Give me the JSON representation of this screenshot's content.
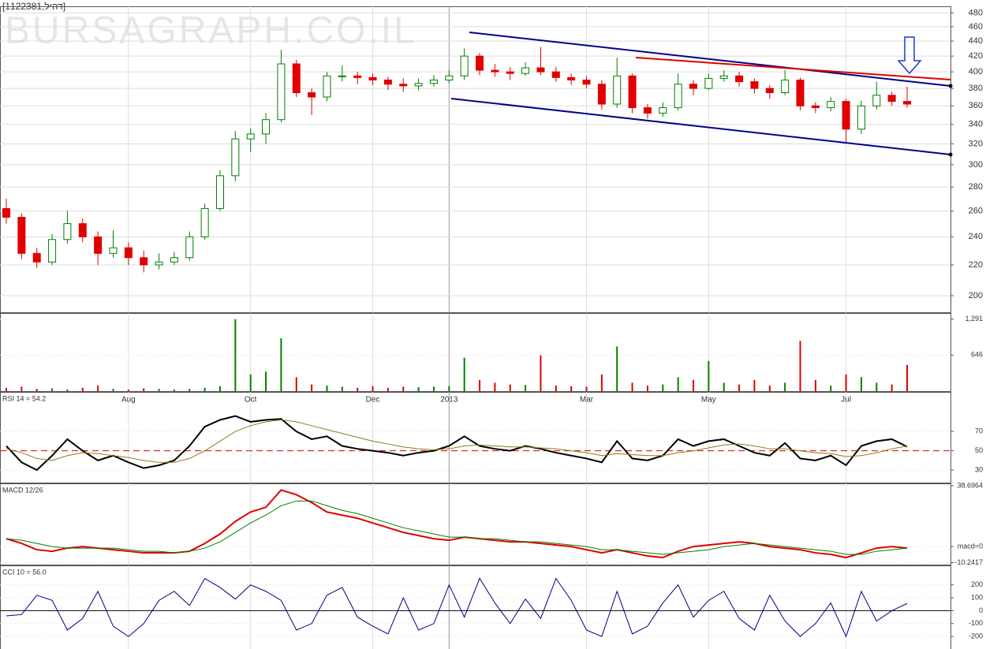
{
  "chart_data": [
    {
      "type": "candlestick",
      "title": "[1122381,דהיל]",
      "watermark": "BURSAGRAPH.CO.IL",
      "categories": [
        null,
        null,
        null,
        null,
        null,
        null,
        null,
        null,
        "Aug",
        null,
        null,
        null,
        null,
        null,
        null,
        null,
        "Oct",
        null,
        null,
        null,
        null,
        null,
        null,
        null,
        "Dec",
        null,
        null,
        null,
        null,
        "2013",
        null,
        null,
        null,
        null,
        null,
        null,
        null,
        null,
        "Mar",
        null,
        null,
        null,
        null,
        null,
        null,
        null,
        "May",
        null,
        null,
        null,
        null,
        null,
        null,
        null,
        null,
        "Jul",
        null,
        null,
        null,
        null
      ],
      "open": [
        262,
        255,
        228,
        222,
        238,
        250,
        240,
        228,
        232,
        225,
        220,
        222,
        225,
        240,
        262,
        290,
        325,
        330,
        345,
        410,
        375,
        370,
        395,
        395,
        393,
        390,
        385,
        383,
        386,
        390,
        395,
        420,
        402,
        400,
        398,
        405,
        400,
        393,
        390,
        385,
        362,
        395,
        358,
        352,
        358,
        385,
        380,
        392,
        395,
        388,
        380,
        375,
        390,
        360,
        358,
        365,
        335,
        360,
        372,
        365
      ],
      "high": [
        270,
        258,
        232,
        242,
        260,
        254,
        244,
        245,
        236,
        230,
        228,
        229,
        244,
        266,
        295,
        333,
        336,
        352,
        428,
        415,
        380,
        400,
        408,
        400,
        398,
        394,
        392,
        392,
        396,
        402,
        430,
        424,
        410,
        406,
        412,
        432,
        406,
        398,
        395,
        390,
        418,
        398,
        362,
        364,
        398,
        390,
        398,
        402,
        400,
        392,
        384,
        402,
        393,
        364,
        370,
        368,
        366,
        388,
        376,
        382
      ],
      "low": [
        250,
        224,
        218,
        220,
        235,
        236,
        220,
        225,
        220,
        215,
        217,
        220,
        223,
        238,
        260,
        285,
        312,
        320,
        342,
        370,
        350,
        365,
        388,
        385,
        384,
        378,
        376,
        378,
        382,
        386,
        390,
        396,
        394,
        390,
        395,
        396,
        388,
        384,
        380,
        356,
        358,
        352,
        346,
        348,
        355,
        372,
        378,
        388,
        382,
        374,
        368,
        372,
        355,
        352,
        354,
        322,
        330,
        356,
        360,
        358
      ],
      "close": [
        255,
        228,
        222,
        238,
        250,
        240,
        228,
        232,
        225,
        220,
        222,
        225,
        240,
        262,
        290,
        325,
        330,
        345,
        410,
        375,
        370,
        395,
        395,
        393,
        390,
        385,
        383,
        386,
        390,
        395,
        420,
        402,
        400,
        398,
        405,
        400,
        393,
        390,
        385,
        362,
        395,
        358,
        352,
        358,
        385,
        380,
        392,
        395,
        388,
        380,
        375,
        390,
        360,
        358,
        365,
        335,
        360,
        372,
        365,
        362
      ],
      "up_color": "#008000",
      "down_color": "#e00000",
      "ylim": [
        190,
        490
      ],
      "log_scale": true,
      "grid": true,
      "yticks": [
        200,
        220,
        240,
        260,
        280,
        300,
        320,
        340,
        360,
        380,
        400,
        420,
        440,
        460,
        480
      ]
    },
    {
      "type": "bar",
      "values": [
        60,
        80,
        40,
        50,
        30,
        60,
        100,
        40,
        30,
        50,
        40,
        30,
        40,
        60,
        90,
        1291,
        300,
        350,
        950,
        250,
        120,
        100,
        80,
        60,
        90,
        60,
        80,
        70,
        80,
        90,
        600,
        200,
        150,
        120,
        110,
        640,
        100,
        90,
        80,
        300,
        800,
        150,
        100,
        120,
        250,
        200,
        540,
        150,
        120,
        200,
        100,
        150,
        900,
        200,
        100,
        300,
        250,
        150,
        120,
        470
      ],
      "ylim": [
        0,
        1400
      ],
      "yticks": [
        646,
        {
          "value": 1291,
          "label": "1,291"
        }
      ]
    },
    {
      "type": "line",
      "title": "RSI 14 = 54.2",
      "level": 50,
      "level_color": "#e00000",
      "series": [
        {
          "color": "#000000",
          "values": [
            55,
            38,
            30,
            45,
            62,
            50,
            40,
            45,
            38,
            32,
            35,
            40,
            55,
            75,
            82,
            86,
            80,
            82,
            83,
            70,
            62,
            65,
            55,
            52,
            50,
            48,
            45,
            48,
            50,
            55,
            65,
            55,
            52,
            50,
            55,
            52,
            48,
            45,
            42,
            38,
            60,
            42,
            40,
            45,
            62,
            55,
            60,
            62,
            55,
            48,
            45,
            58,
            42,
            40,
            45,
            35,
            55,
            60,
            62,
            54.2
          ]
        },
        {
          "color": "#8b7d1a",
          "values": [
            52,
            48,
            42,
            40,
            45,
            48,
            47,
            45,
            43,
            40,
            38,
            38,
            42,
            50,
            60,
            70,
            76,
            80,
            82,
            80,
            76,
            72,
            68,
            64,
            60,
            57,
            54,
            52,
            51,
            52,
            55,
            56,
            55,
            54,
            54,
            53,
            52,
            50,
            48,
            45,
            47,
            46,
            45,
            45,
            48,
            50,
            53,
            56,
            57,
            55,
            52,
            52,
            50,
            48,
            47,
            44,
            45,
            48,
            52,
            55
          ]
        }
      ],
      "ylim": [
        17,
        111
      ],
      "yticks": [
        30,
        50,
        70
      ]
    },
    {
      "type": "line",
      "title": "MACD 12/26",
      "series": [
        {
          "color": "#e00000",
          "values": [
            5,
            2,
            -2,
            -3,
            -1,
            0,
            -1,
            -2,
            -3,
            -4,
            -4,
            -4,
            -3,
            2,
            8,
            16,
            22,
            25,
            36,
            33,
            28,
            22,
            20,
            18,
            15,
            12,
            9,
            7,
            5,
            4,
            6,
            5,
            4,
            3,
            3,
            2,
            1,
            0,
            -2,
            -4,
            -2,
            -4,
            -6,
            -7,
            -3,
            0,
            1,
            2,
            3,
            2,
            0,
            -1,
            -2,
            -4,
            -5,
            -7,
            -4,
            -1,
            0,
            -1
          ]
        },
        {
          "color": "#008000",
          "values": [
            5,
            4,
            2,
            0,
            -1,
            -1,
            -1,
            -1,
            -2,
            -3,
            -3,
            -4,
            -3,
            -1,
            3,
            9,
            15,
            20,
            26,
            29,
            29,
            26,
            23,
            21,
            18,
            15,
            12,
            10,
            8,
            6,
            6,
            5,
            5,
            4,
            3,
            3,
            2,
            1,
            0,
            -2,
            -2,
            -3,
            -4,
            -5,
            -4,
            -3,
            -2,
            0,
            1,
            2,
            1,
            0,
            -1,
            -2,
            -3,
            -5,
            -5,
            -3,
            -2,
            -1
          ]
        }
      ],
      "ylim": [
        -11.5,
        40.2
      ],
      "yticks": [
        38.6964,
        {
          "value": 0,
          "label": "macd=0"
        },
        -10.2417
      ]
    },
    {
      "type": "line",
      "title": "CCI 10 = 56.0",
      "level": 0,
      "level_color": "#000000",
      "series": [
        {
          "color": "#000080",
          "values": [
            -40,
            -30,
            120,
            80,
            -150,
            -60,
            150,
            -120,
            -200,
            -100,
            80,
            150,
            40,
            250,
            180,
            90,
            200,
            150,
            80,
            -150,
            -100,
            120,
            180,
            -50,
            -120,
            -180,
            100,
            -150,
            -100,
            200,
            -50,
            250,
            60,
            -100,
            90,
            -60,
            250,
            80,
            -150,
            -200,
            150,
            -180,
            -120,
            60,
            200,
            -50,
            80,
            150,
            -60,
            -150,
            120,
            -80,
            -200,
            -100,
            60,
            -200,
            150,
            -80,
            0,
            56
          ]
        }
      ],
      "ylim": [
        -297,
        351
      ],
      "yticks": [
        -200,
        -100,
        0,
        100,
        200
      ]
    }
  ]
}
